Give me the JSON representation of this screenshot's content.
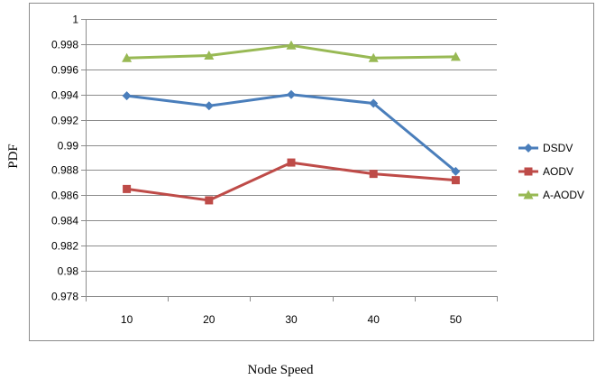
{
  "chart_data": {
    "type": "line",
    "title": "",
    "xlabel": "Node Speed",
    "ylabel": "PDF",
    "categories": [
      "10",
      "20",
      "30",
      "40",
      "50"
    ],
    "ylim": [
      0.978,
      1
    ],
    "yticks": [
      "0.978",
      "0.98",
      "0.982",
      "0.984",
      "0.986",
      "0.988",
      "0.99",
      "0.992",
      "0.994",
      "0.996",
      "0.998",
      "1"
    ],
    "grid": "horizontal",
    "legend_position": "right",
    "series": [
      {
        "name": "DSDV",
        "color": "#4a7ebb",
        "marker": "diamond",
        "values": [
          0.9939,
          0.9931,
          0.994,
          0.9933,
          0.9879
        ]
      },
      {
        "name": "AODV",
        "color": "#be4b48",
        "marker": "square",
        "values": [
          0.9865,
          0.9856,
          0.9886,
          0.9877,
          0.9872
        ]
      },
      {
        "name": "A-AODV",
        "color": "#98b954",
        "marker": "triangle",
        "values": [
          0.9969,
          0.9971,
          0.9979,
          0.9969,
          0.997
        ]
      }
    ]
  }
}
